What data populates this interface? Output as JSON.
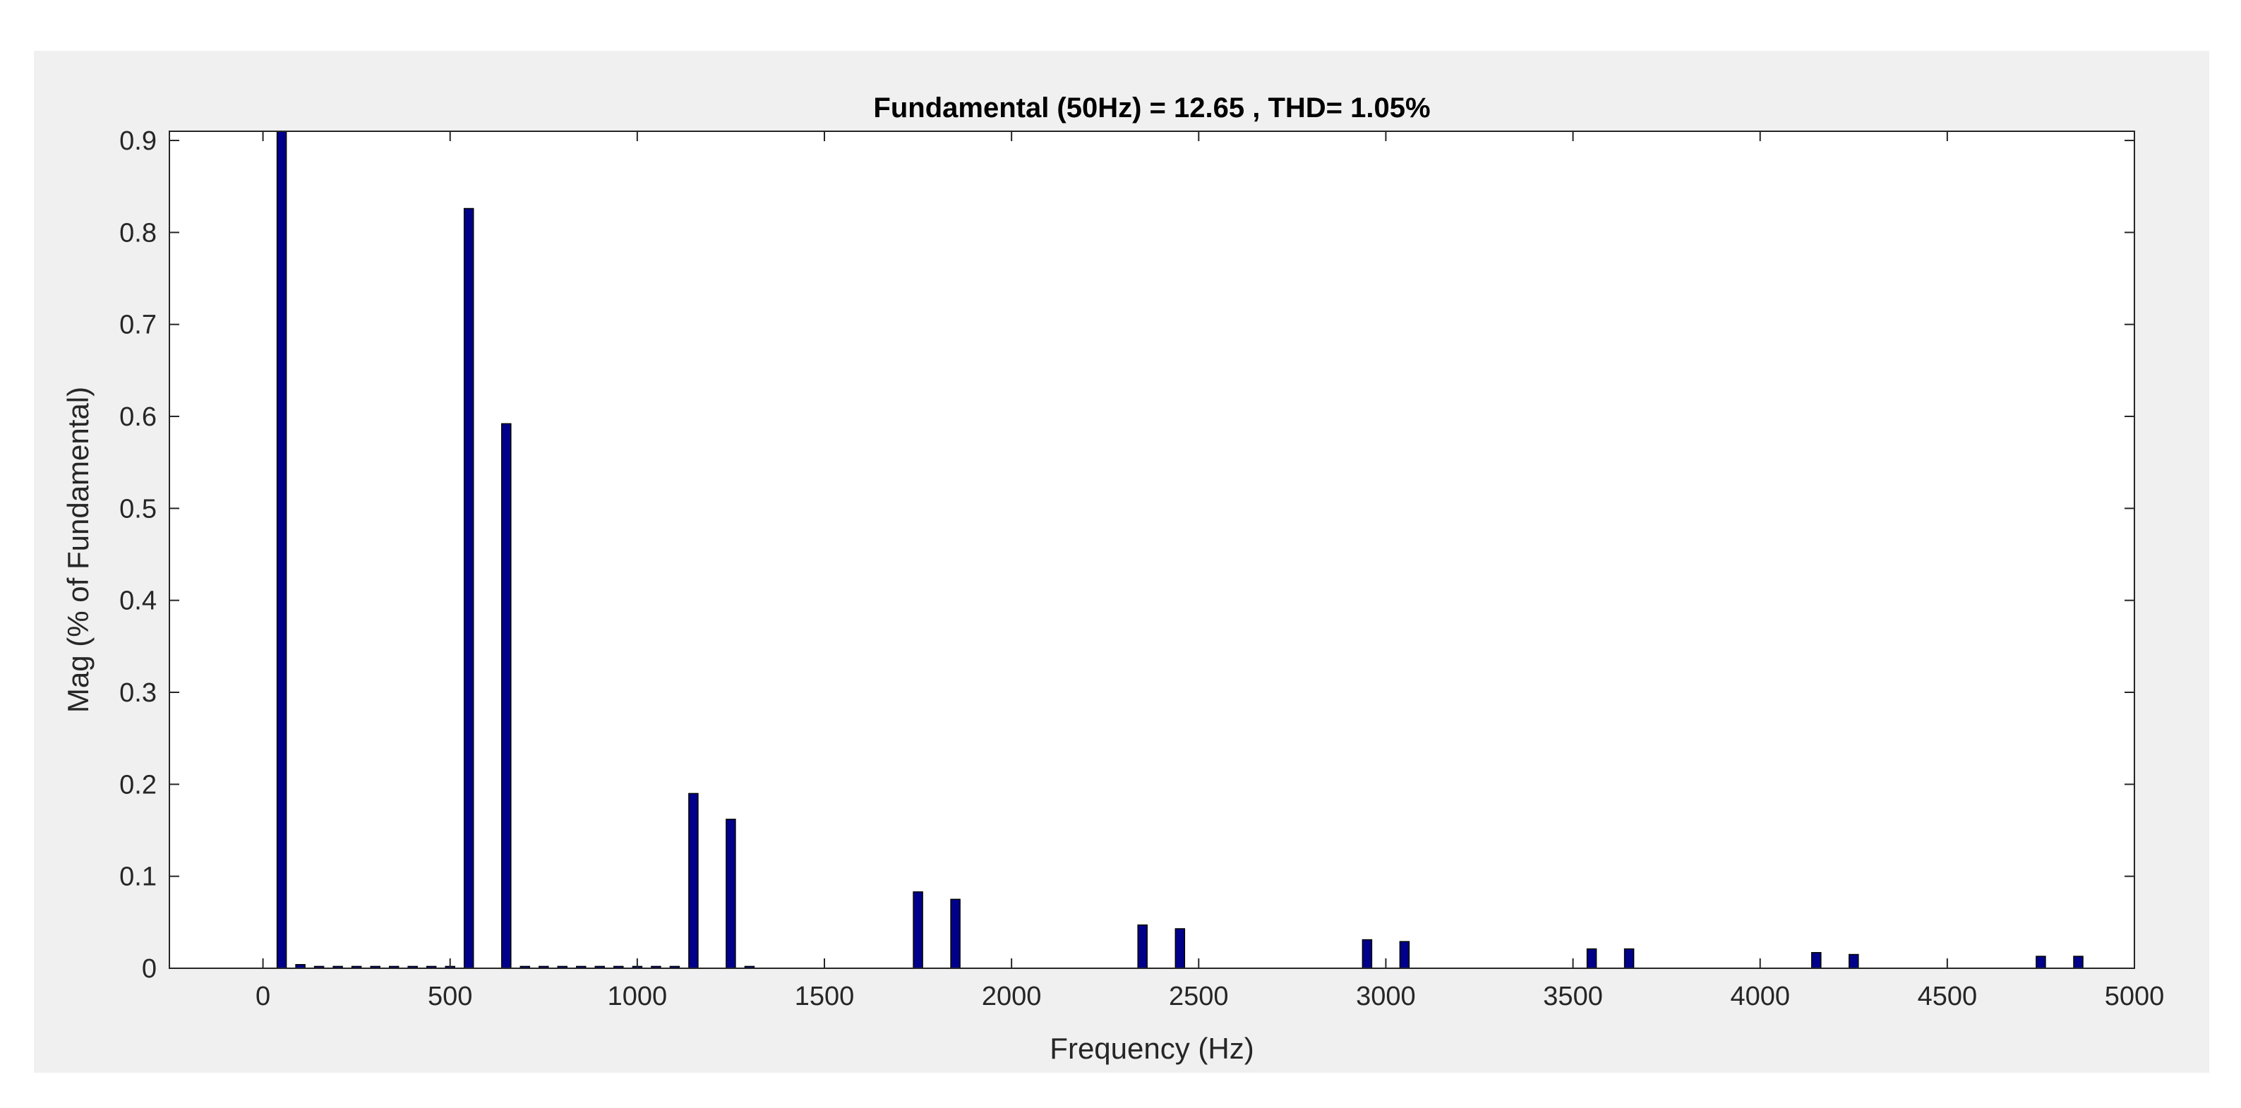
{
  "chart_data": {
    "type": "bar",
    "title": "Fundamental (50Hz) = 12.65 , THD= 1.05%",
    "xlabel": "Frequency (Hz)",
    "ylabel": "Mag (% of Fundamental)",
    "xlim": [
      -250,
      5000
    ],
    "ylim": [
      0,
      0.91
    ],
    "xticks": [
      0,
      500,
      1000,
      1500,
      2000,
      2500,
      3000,
      3500,
      4000,
      4500,
      5000
    ],
    "xtick_labels": [
      "0",
      "500",
      "1000",
      "1500",
      "2000",
      "2500",
      "3000",
      "3500",
      "4000",
      "4500",
      "5000"
    ],
    "yticks": [
      0,
      0.1,
      0.2,
      0.3,
      0.4,
      0.5,
      0.6,
      0.7,
      0.8,
      0.9
    ],
    "ytick_labels": [
      "0",
      "0.1",
      "0.2",
      "0.3",
      "0.4",
      "0.5",
      "0.6",
      "0.7",
      "0.8",
      "0.9"
    ],
    "grid": false,
    "bar_color": "#00008b",
    "bar_edge_color": "#000000",
    "x": [
      50,
      100,
      150,
      200,
      250,
      300,
      350,
      400,
      450,
      500,
      550,
      650,
      700,
      750,
      800,
      850,
      900,
      950,
      1000,
      1050,
      1100,
      1150,
      1250,
      1300,
      1750,
      1850,
      2350,
      2450,
      2950,
      3050,
      3550,
      3650,
      4150,
      4250,
      4750,
      4850
    ],
    "values": [
      0.91,
      0.004,
      0.002,
      0.002,
      0.002,
      0.002,
      0.002,
      0.002,
      0.002,
      0.002,
      0.826,
      0.592,
      0.002,
      0.002,
      0.002,
      0.002,
      0.002,
      0.002,
      0.002,
      0.002,
      0.002,
      0.19,
      0.162,
      0.002,
      0.083,
      0.075,
      0.047,
      0.043,
      0.031,
      0.029,
      0.021,
      0.021,
      0.017,
      0.015,
      0.013,
      0.013
    ]
  },
  "colors": {
    "figure_background": "#f0f0f0",
    "plot_background": "#ffffff",
    "axis_color": "#262626"
  }
}
